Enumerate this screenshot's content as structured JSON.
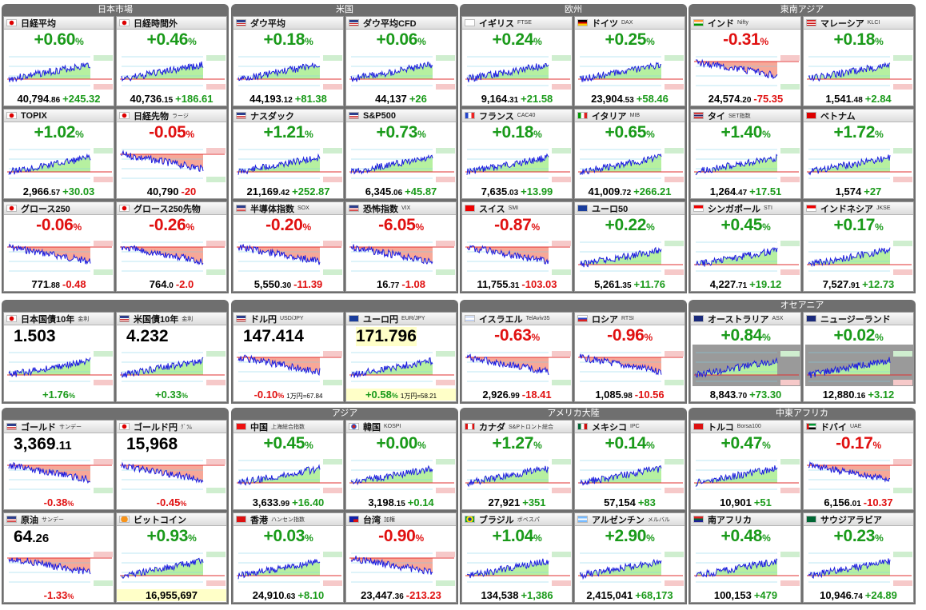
{
  "colors": {
    "up": "#1a9a1a",
    "down": "#e01010",
    "line": "#1c1ce0",
    "upFill": "#b6f0a0",
    "downFill": "#f7a898",
    "header": "#6f6f6f"
  },
  "groups": [
    {
      "title": "日本市場",
      "items": [
        {
          "name": "日経平均",
          "flag": "jp",
          "change": "+0.60",
          "price": "40,794",
          "dec": ".86",
          "diff": "+245.32",
          "dir": "up"
        },
        {
          "name": "日経時間外",
          "flag": "jp",
          "change": "+0.46",
          "price": "40,736",
          "dec": ".15",
          "diff": "+186.61",
          "dir": "up"
        },
        {
          "name": "TOPIX",
          "flag": "jp",
          "change": "+1.02",
          "price": "2,966",
          "dec": ".57",
          "diff": "+30.03",
          "dir": "up"
        },
        {
          "name": "日経先物",
          "sub": "ラージ",
          "flag": "jp",
          "change": "-0.05",
          "price": "40,790",
          "dec": "",
          "diff": "-20",
          "dir": "down"
        },
        {
          "name": "グロース250",
          "flag": "jp",
          "change": "-0.06",
          "price": "771",
          "dec": ".88",
          "diff": "-0.48",
          "dir": "down"
        },
        {
          "name": "グロース250先物",
          "flag": "jp",
          "change": "-0.26",
          "price": "764",
          "dec": ".0",
          "diff": "-2.0",
          "dir": "down"
        }
      ]
    },
    {
      "title": "米国",
      "items": [
        {
          "name": "ダウ平均",
          "flag": "us",
          "change": "+0.18",
          "price": "44,193",
          "dec": ".12",
          "diff": "+81.38",
          "dir": "up"
        },
        {
          "name": "ダウ平均CFD",
          "flag": "us",
          "change": "+0.06",
          "price": "44,137",
          "dec": "",
          "diff": "+26",
          "dir": "up"
        },
        {
          "name": "ナスダック",
          "flag": "us",
          "change": "+1.21",
          "price": "21,169",
          "dec": ".42",
          "diff": "+252.87",
          "dir": "up"
        },
        {
          "name": "S&P500",
          "flag": "us",
          "change": "+0.73",
          "price": "6,345",
          "dec": ".06",
          "diff": "+45.87",
          "dir": "up"
        },
        {
          "name": "半導体指数",
          "sub": "SOX",
          "flag": "us",
          "change": "-0.20",
          "price": "5,550",
          "dec": ".30",
          "diff": "-11.39",
          "dir": "down"
        },
        {
          "name": "恐怖指数",
          "sub": "VIX",
          "flag": "us",
          "change": "-6.05",
          "price": "16",
          "dec": ".77",
          "diff": "-1.08",
          "dir": "down",
          "vix": true
        }
      ]
    },
    {
      "title": "欧州",
      "items": [
        {
          "name": "イギリス",
          "sub": "FTSE",
          "flag": "gb",
          "change": "+0.24",
          "price": "9,164",
          "dec": ".31",
          "diff": "+21.58",
          "dir": "up"
        },
        {
          "name": "ドイツ",
          "sub": "DAX",
          "flag": "de",
          "change": "+0.25",
          "price": "23,904",
          "dec": ".53",
          "diff": "+58.46",
          "dir": "up"
        },
        {
          "name": "フランス",
          "sub": "CAC40",
          "flag": "fr",
          "change": "+0.18",
          "price": "7,635",
          "dec": ".03",
          "diff": "+13.99",
          "dir": "up"
        },
        {
          "name": "イタリア",
          "sub": "MIB",
          "flag": "it",
          "change": "+0.65",
          "price": "41,009",
          "dec": ".72",
          "diff": "+266.21",
          "dir": "up"
        },
        {
          "name": "スイス",
          "sub": "SMI",
          "flag": "ch",
          "change": "-0.87",
          "price": "11,755",
          "dec": ".31",
          "diff": "-103.03",
          "dir": "down"
        },
        {
          "name": "ユーロ50",
          "flag": "eu",
          "change": "+0.22",
          "price": "5,261",
          "dec": ".35",
          "diff": "+11.76",
          "dir": "up"
        }
      ]
    },
    {
      "title": "東南アジア",
      "items": [
        {
          "name": "インド",
          "sub": "Nifty",
          "flag": "in",
          "change": "-0.31",
          "price": "24,574",
          "dec": ".20",
          "diff": "-75.35",
          "dir": "down"
        },
        {
          "name": "マレーシア",
          "sub": "KLCI",
          "flag": "my",
          "change": "+0.18",
          "price": "1,541",
          "dec": ".48",
          "diff": "+2.84",
          "dir": "up"
        },
        {
          "name": "タイ",
          "sub": "SET指数",
          "flag": "th",
          "change": "+1.40",
          "price": "1,264",
          "dec": ".47",
          "diff": "+17.51",
          "dir": "up"
        },
        {
          "name": "ベトナム",
          "flag": "vn",
          "change": "+1.72",
          "price": "1,574",
          "dec": "",
          "diff": "+27",
          "dir": "up"
        },
        {
          "name": "シンガポール",
          "sub": "STI",
          "flag": "sg",
          "change": "+0.45",
          "price": "4,227",
          "dec": ".71",
          "diff": "+19.12",
          "dir": "up"
        },
        {
          "name": "インドネシア",
          "sub": "JKSE",
          "flag": "id",
          "change": "+0.17",
          "price": "7,527",
          "dec": ".91",
          "diff": "+12.73",
          "dir": "up"
        }
      ]
    },
    {
      "title": "",
      "items": [
        {
          "name": "日本国債10年",
          "sub": "金利",
          "flag": "jp",
          "big": "1.503",
          "bottomChg": "+1.76",
          "dir": "up"
        },
        {
          "name": "米国債10年",
          "sub": "金利",
          "flag": "us",
          "big": "4.232",
          "bottomChg": "+0.33",
          "dir": "up"
        }
      ]
    },
    {
      "title": "",
      "items": [
        {
          "name": "ドル円",
          "sub": "USD/JPY",
          "flag": "us",
          "big": "147.414",
          "bottomChg": "-0.10",
          "extra": "1万円=67.84",
          "dir": "down"
        },
        {
          "name": "ユーロ円",
          "sub": "EUR/JPY",
          "flag": "eu",
          "big": "171.796",
          "bottomChg": "+0.58",
          "extra": "1万円=58.21",
          "dir": "up",
          "hl": true
        }
      ]
    },
    {
      "title": "",
      "items": [
        {
          "name": "イスラエル",
          "sub": "TelAviv35",
          "flag": "il",
          "change": "-0.63",
          "price": "2,926",
          "dec": ".99",
          "diff": "-18.41",
          "dir": "down"
        },
        {
          "name": "ロシア",
          "sub": "RTSI",
          "flag": "ru",
          "change": "-0.96",
          "price": "1,085",
          "dec": ".98",
          "diff": "-10.56",
          "dir": "down"
        }
      ]
    },
    {
      "title": "オセアニア",
      "items": [
        {
          "name": "オーストラリア",
          "sub": "ASX",
          "flag": "au",
          "change": "+0.84",
          "price": "8,843",
          "dec": ".70",
          "diff": "+73.30",
          "dir": "up",
          "grey": true
        },
        {
          "name": "ニュージーランド",
          "flag": "nz",
          "change": "+0.02",
          "price": "12,880",
          "dec": ".16",
          "diff": "+3.12",
          "dir": "up",
          "grey": true
        }
      ]
    },
    {
      "title": "",
      "items": [
        {
          "name": "ゴールド",
          "sub": "サンデー",
          "flag": "us",
          "big": "3,369",
          "bigdec": ".11",
          "bottomChg": "-0.38",
          "dir": "down"
        },
        {
          "name": "ゴールド円",
          "sub": "ｸﾞﾗﾑ",
          "flag": "jp",
          "big": "15,968",
          "bottomChg": "-0.45",
          "dir": "down"
        },
        {
          "name": "原油",
          "sub": "サンデー",
          "flag": "us",
          "big": "64",
          "bigdec": ".26",
          "bottomChg": "-1.33",
          "dir": "down"
        },
        {
          "name": "ビットコイン",
          "flag": "btc",
          "change": "+0.93",
          "price": "16,955,697",
          "dec": "",
          "diff": "",
          "dir": "up",
          "hlb": true
        }
      ]
    },
    {
      "title": "アジア",
      "items": [
        {
          "name": "中国",
          "sub": "上海総合指数",
          "flag": "cn",
          "change": "+0.45",
          "price": "3,633",
          "dec": ".99",
          "diff": "+16.40",
          "dir": "up"
        },
        {
          "name": "韓国",
          "sub": "KOSPI",
          "flag": "kr",
          "change": "+0.00",
          "price": "3,198",
          "dec": ".15",
          "diff": "+0.14",
          "dir": "up"
        },
        {
          "name": "香港",
          "sub": "ハンセン指数",
          "flag": "hk",
          "change": "+0.03",
          "price": "24,910",
          "dec": ".63",
          "diff": "+8.10",
          "dir": "up"
        },
        {
          "name": "台湾",
          "sub": "加権",
          "flag": "tw",
          "change": "-0.90",
          "price": "23,447",
          "dec": ".36",
          "diff": "-213.23",
          "dir": "down"
        }
      ]
    },
    {
      "title": "アメリカ大陸",
      "items": [
        {
          "name": "カナダ",
          "sub": "S&Pトロント総合",
          "flag": "ca",
          "change": "+1.27",
          "price": "27,921",
          "dec": "",
          "diff": "+351",
          "dir": "up"
        },
        {
          "name": "メキシコ",
          "sub": "IPC",
          "flag": "mx",
          "change": "+0.14",
          "price": "57,154",
          "dec": "",
          "diff": "+83",
          "dir": "up"
        },
        {
          "name": "ブラジル",
          "sub": "ボベスパ",
          "flag": "br",
          "change": "+1.04",
          "price": "134,538",
          "dec": "",
          "diff": "+1,386",
          "dir": "up"
        },
        {
          "name": "アルゼンチン",
          "sub": "メルバル",
          "flag": "ar",
          "change": "+2.90",
          "price": "2,415,041",
          "dec": "",
          "diff": "+68,173",
          "dir": "up"
        }
      ]
    },
    {
      "title": "中東アフリカ",
      "items": [
        {
          "name": "トルコ",
          "sub": "Borsa100",
          "flag": "tr",
          "change": "+0.47",
          "price": "10,901",
          "dec": "",
          "diff": "+51",
          "dir": "up"
        },
        {
          "name": "ドバイ",
          "sub": "UAE",
          "flag": "ae",
          "change": "-0.17",
          "price": "6,156",
          "dec": ".01",
          "diff": "-10.37",
          "dir": "down"
        },
        {
          "name": "南アフリカ",
          "flag": "za",
          "change": "+0.48",
          "price": "100,153",
          "dec": "",
          "diff": "+479",
          "dir": "up"
        },
        {
          "name": "サウジアラビア",
          "flag": "sa",
          "change": "+0.23",
          "price": "10,946",
          "dec": ".74",
          "diff": "+24.89",
          "dir": "up"
        }
      ]
    }
  ]
}
